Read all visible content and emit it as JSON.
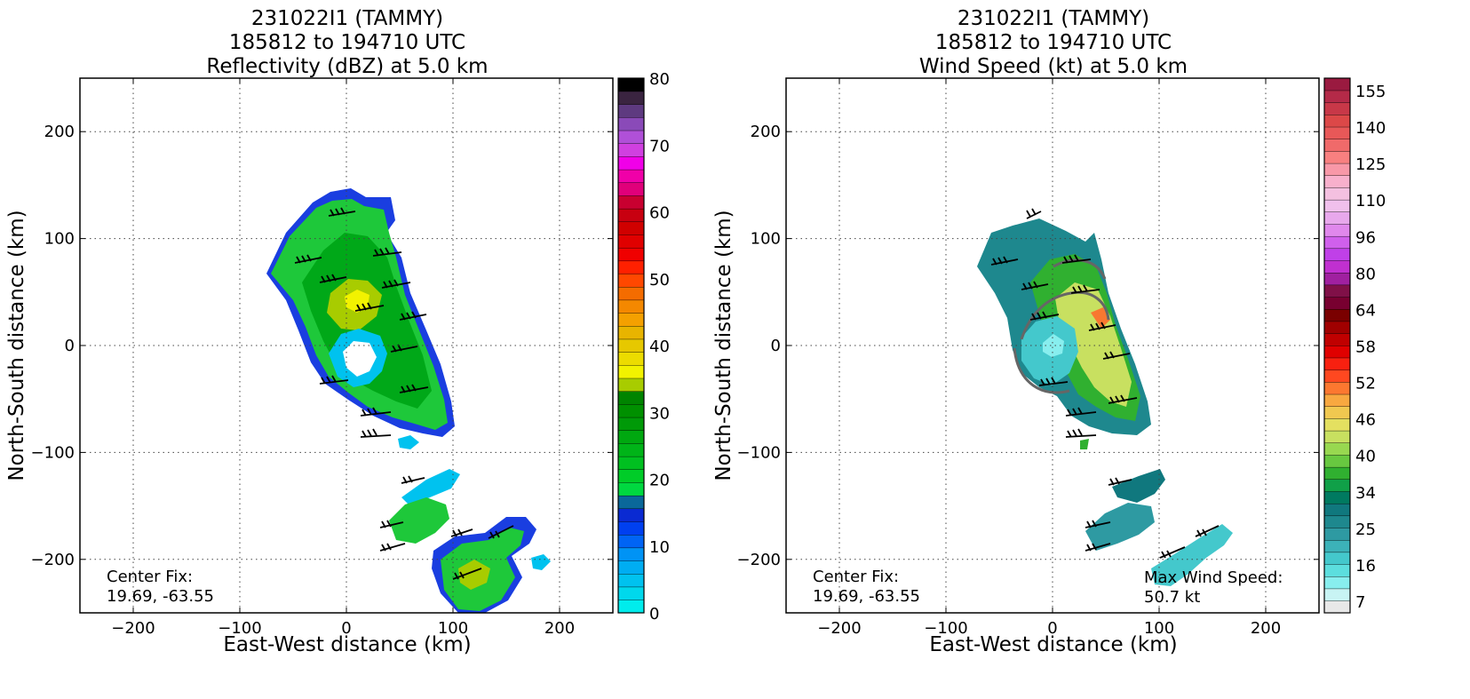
{
  "chart_data": [
    {
      "type": "heatmap",
      "title": "231022I1 (TAMMY)\n185812 to 194710 UTC\nReflectivity (dBZ) at 5.0 km",
      "title_lines": [
        "231022I1 (TAMMY)",
        "185812 to 194710 UTC",
        "Reflectivity (dBZ) at 5.0 km"
      ],
      "xlabel": "East-West distance (km)",
      "ylabel": "North-South distance (km)",
      "xlim": [
        -250,
        250
      ],
      "ylim": [
        -250,
        250
      ],
      "xticks": [
        -200,
        -100,
        0,
        100,
        200
      ],
      "yticks": [
        -200,
        -100,
        0,
        100,
        200
      ],
      "grid": true,
      "colorbar": {
        "min": 0,
        "max": 80,
        "tick_values": [
          0,
          10,
          20,
          30,
          40,
          50,
          60,
          70,
          80
        ],
        "colors": [
          "#00ecec",
          "#00d8ec",
          "#00c2ef",
          "#00adf2",
          "#0093f5",
          "#0064f5",
          "#0040f0",
          "#0a2ad2",
          "#0a689a",
          "#00d840",
          "#00cc28",
          "#00c020",
          "#00b418",
          "#00a810",
          "#009a08",
          "#009000",
          "#008400",
          "#a8cc00",
          "#f2f200",
          "#ecdc00",
          "#e6c800",
          "#e8b400",
          "#f4a000",
          "#f48800",
          "#f46c00",
          "#ff4800",
          "#ff2000",
          "#f00000",
          "#e00000",
          "#d00000",
          "#c80010",
          "#c80030",
          "#e0007a",
          "#f000a8",
          "#f000e8",
          "#d040e0",
          "#b050d8",
          "#8a4ab8",
          "#5e3a80",
          "#3a2440",
          "#000000"
        ]
      },
      "annotation": {
        "label": "Center Fix:",
        "value": "19.69, -63.55"
      }
    },
    {
      "type": "heatmap",
      "title": "231022I1 (TAMMY)\n185812 to 194710 UTC\nWind Speed (kt) at 5.0 km",
      "title_lines": [
        "231022I1 (TAMMY)",
        "185812 to 194710 UTC",
        "Wind Speed (kt) at 5.0 km"
      ],
      "xlabel": "East-West distance (km)",
      "ylabel": "North-South distance (km)",
      "xlim": [
        -250,
        250
      ],
      "ylim": [
        -250,
        250
      ],
      "xticks": [
        -200,
        -100,
        0,
        100,
        200
      ],
      "yticks": [
        -200,
        -100,
        0,
        100,
        200
      ],
      "grid": true,
      "colorbar": {
        "tick_labels": [
          "7",
          "16",
          "25",
          "34",
          "40",
          "46",
          "52",
          "58",
          "64",
          "80",
          "96",
          "110",
          "125",
          "140",
          "155"
        ],
        "colors": [
          "#e8e8e8",
          "#c8f4f4",
          "#88eeee",
          "#5cdede",
          "#44c8cc",
          "#3cb2b8",
          "#2e9aa2",
          "#1e888e",
          "#10787e",
          "#007a60",
          "#10a048",
          "#30b030",
          "#68c840",
          "#98d850",
          "#c8e060",
          "#e4e060",
          "#f0c850",
          "#f8a840",
          "#fc7830",
          "#ff4820",
          "#f82010",
          "#e00000",
          "#c00000",
          "#a00000",
          "#7a0000",
          "#780030",
          "#801048",
          "#a020a0",
          "#c030d0",
          "#c040e8",
          "#d060ec",
          "#e088ec",
          "#e8a8ec",
          "#f0c0ec",
          "#f4c0e0",
          "#f8b0cc",
          "#f898a8",
          "#f88080",
          "#f06a6a",
          "#e85858",
          "#dc4848",
          "#c83848",
          "#b42a48",
          "#9a1a40"
        ]
      },
      "annotation": {
        "label": "Center Fix:",
        "value": "19.69, -63.55"
      },
      "max_label": {
        "label": "Max Wind Speed:",
        "value": "50.7 kt"
      }
    }
  ]
}
